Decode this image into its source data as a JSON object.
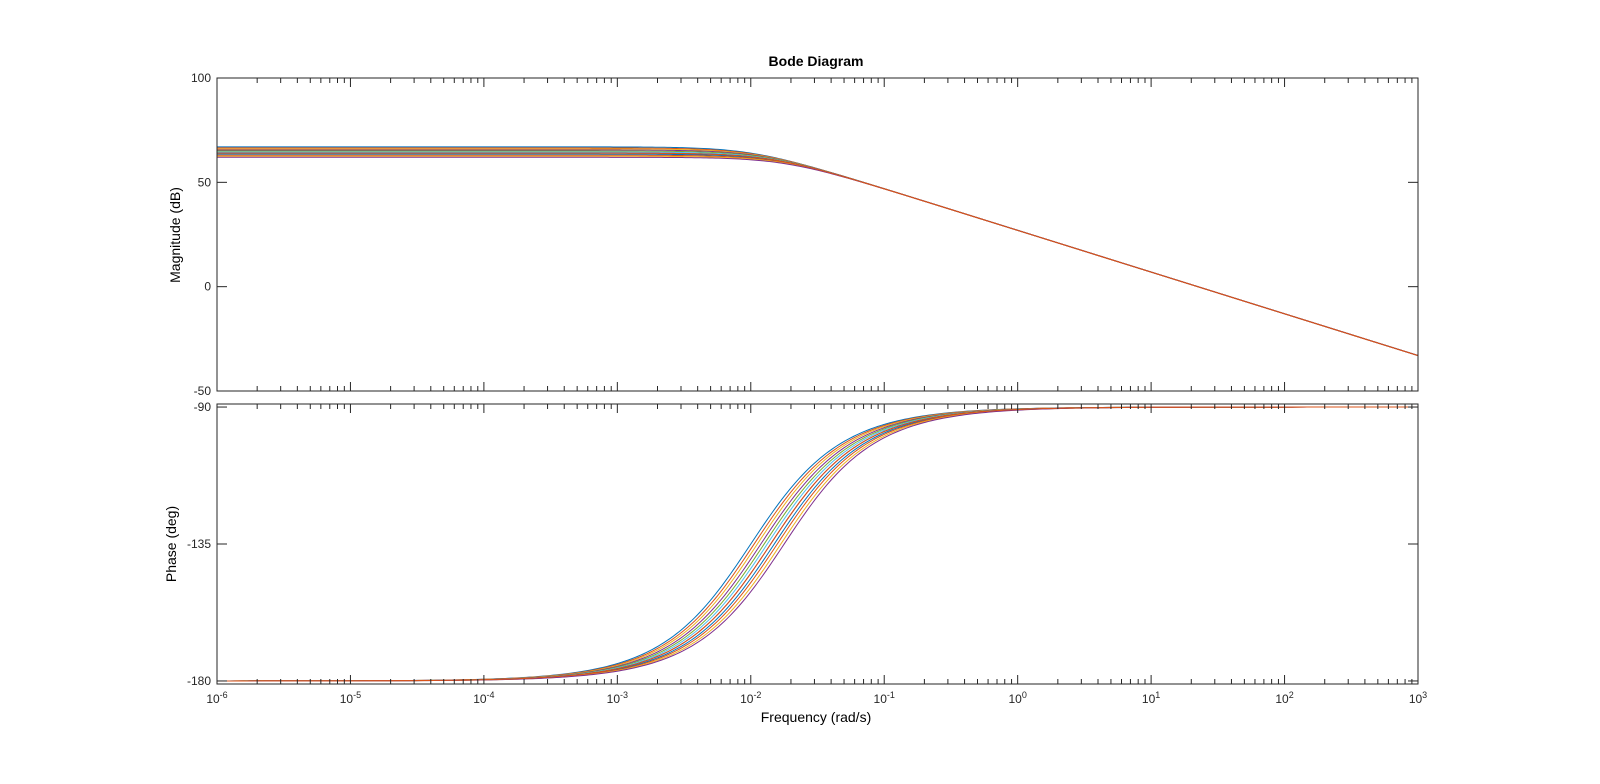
{
  "chart_data": [
    {
      "type": "line",
      "panel": "magnitude",
      "title": "Bode Diagram",
      "xlabel": "",
      "ylabel": "Magnitude (dB)",
      "xscale": "log",
      "xlim": [
        1e-06,
        1000
      ],
      "ylim": [
        -50,
        100
      ],
      "yticks": [
        "100",
        "50",
        "0",
        "-50"
      ],
      "grid": false,
      "legend": "none",
      "description_series": "family of first-order low-pass responses",
      "series": [
        {
          "k_db": 67.0,
          "corner": 0.01,
          "color": "#0072BD"
        },
        {
          "k_db": 66.5,
          "corner": 0.0106,
          "color": "#D95319"
        },
        {
          "k_db": 66.0,
          "corner": 0.0112,
          "color": "#EDB120"
        },
        {
          "k_db": 65.5,
          "corner": 0.0119,
          "color": "#7E2F8E"
        },
        {
          "k_db": 65.0,
          "corner": 0.0126,
          "color": "#77AC30"
        },
        {
          "k_db": 64.5,
          "corner": 0.0133,
          "color": "#4DBEEE"
        },
        {
          "k_db": 64.0,
          "corner": 0.0141,
          "color": "#A2142F"
        },
        {
          "k_db": 63.5,
          "corner": 0.015,
          "color": "#0072BD"
        },
        {
          "k_db": 63.0,
          "corner": 0.0158,
          "color": "#D95319"
        },
        {
          "k_db": 62.5,
          "corner": 0.0168,
          "color": "#EDB120"
        },
        {
          "k_db": 62.0,
          "corner": 0.0178,
          "color": "#7E2F8E"
        },
        {
          "k_db": 64.0,
          "corner": 0.0141,
          "color": "#D95319"
        }
      ]
    },
    {
      "type": "line",
      "panel": "phase",
      "title": "",
      "xlabel": "Frequency  (rad/s)",
      "ylabel": "Phase (deg)",
      "xscale": "log",
      "xlim": [
        1e-06,
        1000
      ],
      "ylim": [
        -181,
        -89
      ],
      "yticks": [
        "-90",
        "-135",
        "-180"
      ],
      "xticks": [
        {
          "base": "10",
          "exp": "-6"
        },
        {
          "base": "10",
          "exp": "-5"
        },
        {
          "base": "10",
          "exp": "-4"
        },
        {
          "base": "10",
          "exp": "-3"
        },
        {
          "base": "10",
          "exp": "-2"
        },
        {
          "base": "10",
          "exp": "-1"
        },
        {
          "base": "10",
          "exp": "0"
        },
        {
          "base": "10",
          "exp": "1"
        },
        {
          "base": "10",
          "exp": "2"
        },
        {
          "base": "10",
          "exp": "3"
        }
      ],
      "grid": false,
      "legend": "none",
      "series_ref": "same family as magnitude panel; phase = -90 - atan(corner/w)"
    }
  ]
}
